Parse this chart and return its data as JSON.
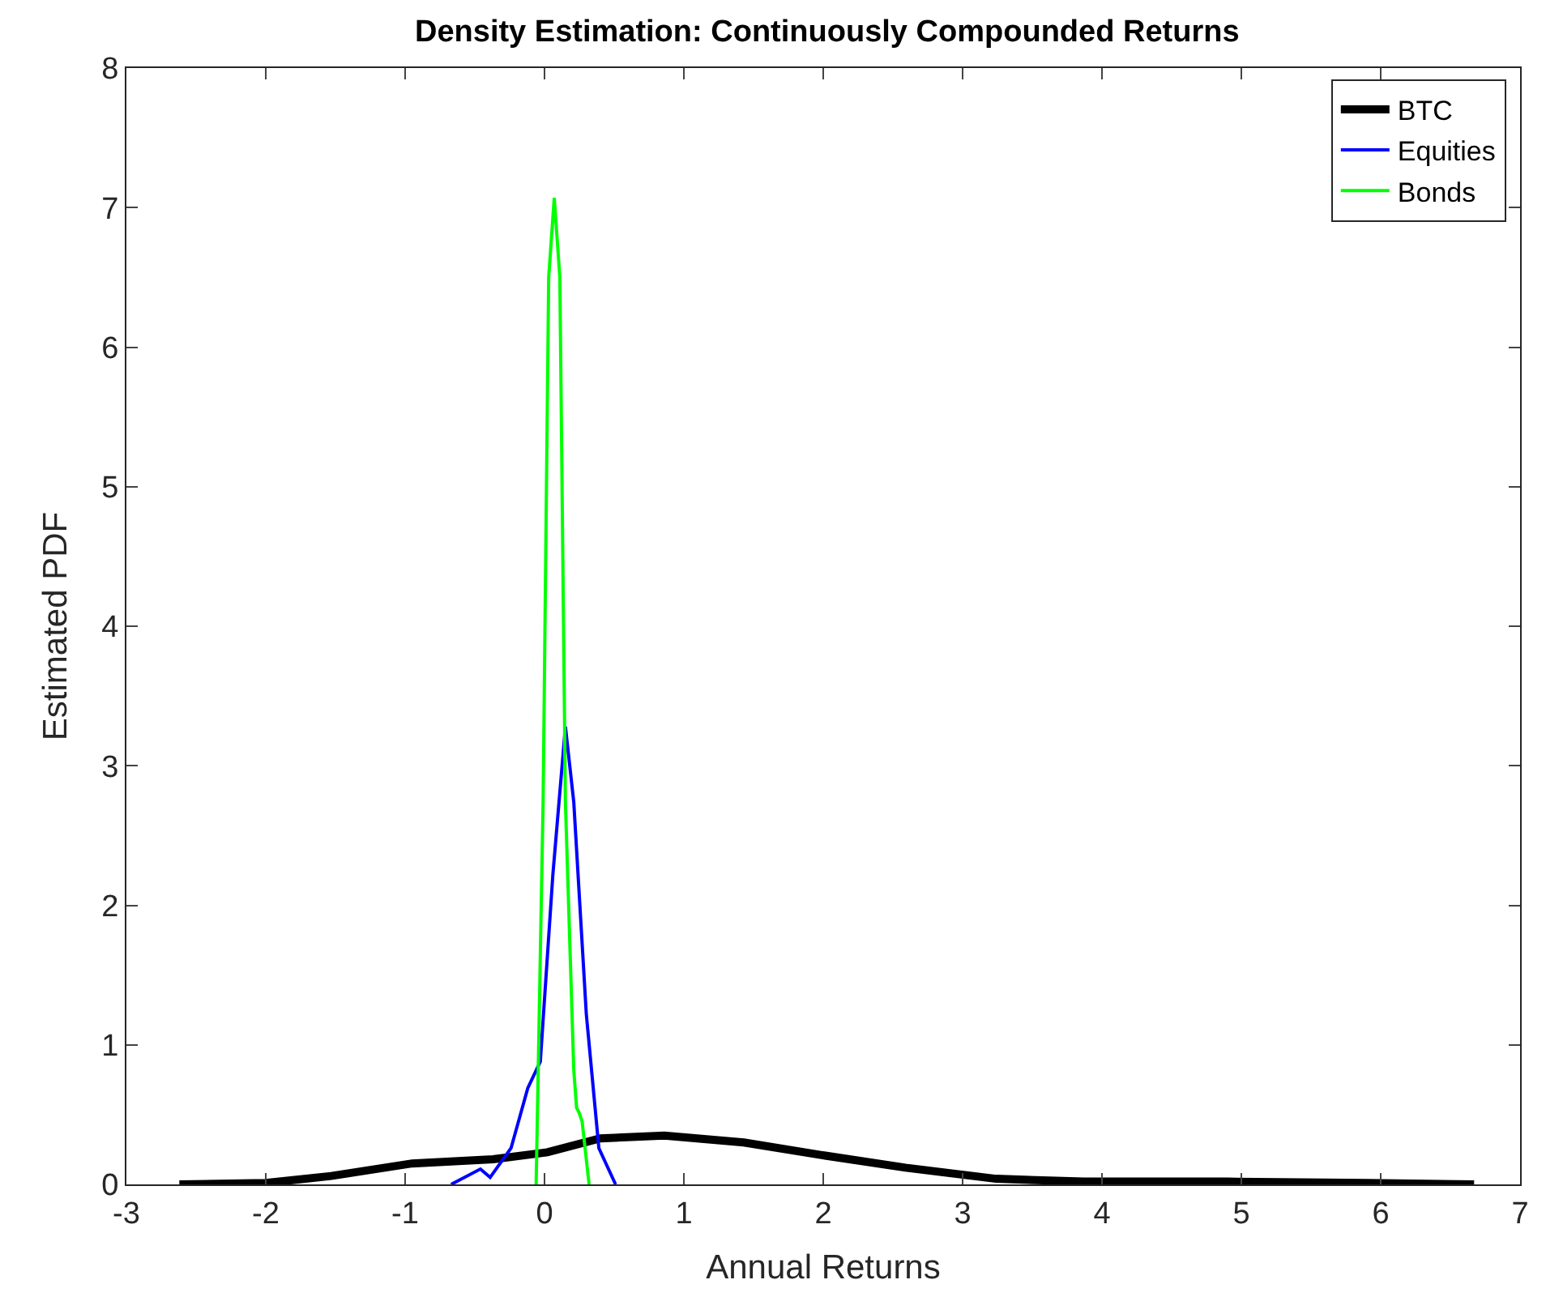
{
  "chart_data": {
    "type": "line",
    "title": "Density Estimation: Continuously Compounded Returns",
    "xlabel": "Annual Returns",
    "ylabel": "Estimated PDF",
    "xlim": [
      -3,
      7
    ],
    "xticks": [
      -3,
      -2,
      -1,
      0,
      1,
      2,
      3,
      4,
      5,
      6,
      7
    ],
    "ylim": [
      0,
      8
    ],
    "yticks": [
      0,
      1,
      2,
      3,
      4,
      5,
      6,
      7,
      8
    ],
    "legend": "top right",
    "marker": "none",
    "line_style": "solid",
    "series": [
      {
        "name": "BTC",
        "color": "#000000",
        "x": [
          -2.62,
          -2.0,
          -1.53,
          -0.95,
          -0.37,
          0.02,
          0.4,
          0.86,
          1.43,
          1.99,
          2.59,
          3.24,
          3.87,
          4.9,
          5.9,
          6.67
        ],
        "values": [
          0,
          0.01,
          0.06,
          0.15,
          0.18,
          0.23,
          0.33,
          0.35,
          0.3,
          0.21,
          0.12,
          0.04,
          0.02,
          0.02,
          0.01,
          0
        ]
      },
      {
        "name": "Equities",
        "color": "#0000ff",
        "x": [
          -0.67,
          -0.46,
          -0.39,
          -0.24,
          -0.12,
          -0.03,
          0.06,
          0.15,
          0.21,
          0.3,
          0.39,
          0.51
        ],
        "values": [
          0,
          0.11,
          0.05,
          0.26,
          0.69,
          0.88,
          2.22,
          3.28,
          2.74,
          1.22,
          0.26,
          0
        ]
      },
      {
        "name": "Bonds",
        "color": "#00ff00",
        "x": [
          -0.06,
          -0.01,
          0.03,
          0.07,
          0.11,
          0.15,
          0.21,
          0.23,
          0.25,
          0.27,
          0.32
        ],
        "values": [
          0,
          2.74,
          6.5,
          7.07,
          6.5,
          2.74,
          0.82,
          0.55,
          0.51,
          0.45,
          0
        ]
      }
    ]
  }
}
